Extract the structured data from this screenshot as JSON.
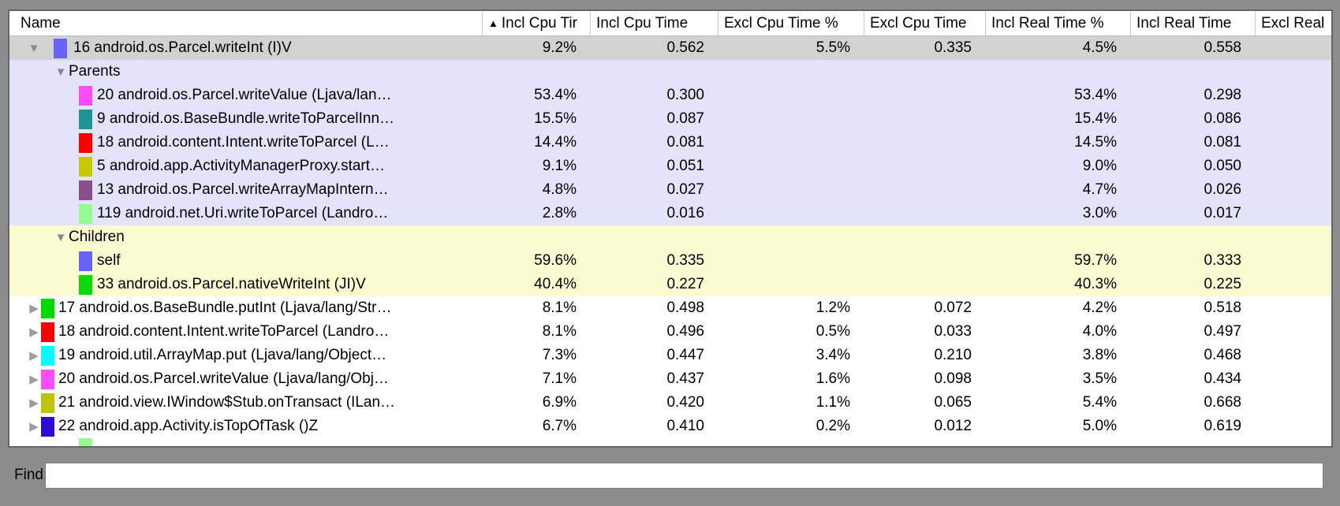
{
  "palette": {
    "frame": "#8d8d8d",
    "header_bg": "#ffffff",
    "row_bg": "#ffffff",
    "selected_row": "#d2d2d2",
    "parents_bg": "#e3e3fb",
    "children_bg": "#fbfbd2"
  },
  "table": {
    "columns": [
      {
        "label": "Name"
      },
      {
        "label": "Incl Cpu Tir",
        "sorted": "asc"
      },
      {
        "label": "Incl Cpu Time"
      },
      {
        "label": "Excl Cpu Time %"
      },
      {
        "label": "Excl Cpu Time"
      },
      {
        "label": "Incl Real Time %"
      },
      {
        "label": "Incl Real Time"
      },
      {
        "label": "Excl Real"
      }
    ],
    "rows": [
      {
        "type": "root-open",
        "tri": "down",
        "chip": "#6961f8",
        "bg": "selected",
        "name": "16 android.os.Parcel.writeInt (I)V",
        "vals": [
          "9.2%",
          "0.562",
          "5.5%",
          "0.335",
          "4.5%",
          "0.558",
          ""
        ]
      },
      {
        "type": "group",
        "tri": "down",
        "bg": "parents",
        "name": "Parents",
        "vals": [
          "",
          "",
          "",
          "",
          "",
          "",
          ""
        ]
      },
      {
        "type": "sub",
        "chip": "#fa4df7",
        "bg": "parents",
        "name": "20 android.os.Parcel.writeValue (Ljava/lan…",
        "vals": [
          "53.4%",
          "0.300",
          "",
          "",
          "53.4%",
          "0.298",
          ""
        ]
      },
      {
        "type": "sub",
        "chip": "#219393",
        "bg": "parents",
        "name": "9 android.os.BaseBundle.writeToParcelInn…",
        "vals": [
          "15.5%",
          "0.087",
          "",
          "",
          "15.4%",
          "0.086",
          ""
        ]
      },
      {
        "type": "sub",
        "chip": "#fa0000",
        "bg": "parents",
        "name": "18 android.content.Intent.writeToParcel (L…",
        "vals": [
          "14.4%",
          "0.081",
          "",
          "",
          "14.5%",
          "0.081",
          ""
        ]
      },
      {
        "type": "sub",
        "chip": "#c8c800",
        "bg": "parents",
        "name": "5 android.app.ActivityManagerProxy.start…",
        "vals": [
          "9.1%",
          "0.051",
          "",
          "",
          "9.0%",
          "0.050",
          ""
        ]
      },
      {
        "type": "sub",
        "chip": "#8a4f8a",
        "bg": "parents",
        "name": "13 android.os.Parcel.writeArrayMapIntern…",
        "vals": [
          "4.8%",
          "0.027",
          "",
          "",
          "4.7%",
          "0.026",
          ""
        ]
      },
      {
        "type": "sub",
        "chip": "#96fa96",
        "bg": "parents",
        "name": "119 android.net.Uri.writeToParcel (Landro…",
        "vals": [
          "2.8%",
          "0.016",
          "",
          "",
          "3.0%",
          "0.017",
          ""
        ]
      },
      {
        "type": "group",
        "tri": "down",
        "bg": "children",
        "name": "Children",
        "vals": [
          "",
          "",
          "",
          "",
          "",
          "",
          ""
        ]
      },
      {
        "type": "sub",
        "chip": "#6961f8",
        "bg": "children",
        "name": "self",
        "vals": [
          "59.6%",
          "0.335",
          "",
          "",
          "59.7%",
          "0.333",
          ""
        ]
      },
      {
        "type": "sub",
        "chip": "#0cd80c",
        "bg": "children",
        "name": "33 android.os.Parcel.nativeWriteInt (JI)V",
        "vals": [
          "40.4%",
          "0.227",
          "",
          "",
          "40.3%",
          "0.225",
          ""
        ]
      },
      {
        "type": "root",
        "tri": "right",
        "chip": "#00dc00",
        "bg": "white",
        "name": "17 android.os.BaseBundle.putInt (Ljava/lang/Str…",
        "vals": [
          "8.1%",
          "0.498",
          "1.2%",
          "0.072",
          "4.2%",
          "0.518",
          ""
        ]
      },
      {
        "type": "root",
        "tri": "right",
        "chip": "#fa0000",
        "bg": "white",
        "name": "18 android.content.Intent.writeToParcel (Landro…",
        "vals": [
          "8.1%",
          "0.496",
          "0.5%",
          "0.033",
          "4.0%",
          "0.497",
          ""
        ]
      },
      {
        "type": "root",
        "tri": "right",
        "chip": "#00feff",
        "bg": "white",
        "name": "19 android.util.ArrayMap.put (Ljava/lang/Object…",
        "vals": [
          "7.3%",
          "0.447",
          "3.4%",
          "0.210",
          "3.8%",
          "0.468",
          ""
        ]
      },
      {
        "type": "root",
        "tri": "right",
        "chip": "#fa4df7",
        "bg": "white",
        "name": "20 android.os.Parcel.writeValue (Ljava/lang/Obj…",
        "vals": [
          "7.1%",
          "0.437",
          "1.6%",
          "0.098",
          "3.5%",
          "0.434",
          ""
        ]
      },
      {
        "type": "root",
        "tri": "right",
        "chip": "#c2c208",
        "bg": "white",
        "name": "21 android.view.IWindow$Stub.onTransact (ILan…",
        "vals": [
          "6.9%",
          "0.420",
          "1.1%",
          "0.065",
          "5.4%",
          "0.668",
          ""
        ]
      },
      {
        "type": "root",
        "tri": "right",
        "chip": "#2e0ad2",
        "bg": "white",
        "name": "22 android.app.Activity.isTopOfTask ()Z",
        "vals": [
          "6.7%",
          "0.410",
          "0.2%",
          "0.012",
          "5.0%",
          "0.619",
          ""
        ]
      },
      {
        "type": "partial",
        "chip": "#96fa96",
        "bg": "white",
        "name": "",
        "vals": [
          "",
          "",
          "",
          "",
          "",
          "",
          ""
        ]
      }
    ]
  },
  "find": {
    "label": "Find:",
    "value": ""
  }
}
